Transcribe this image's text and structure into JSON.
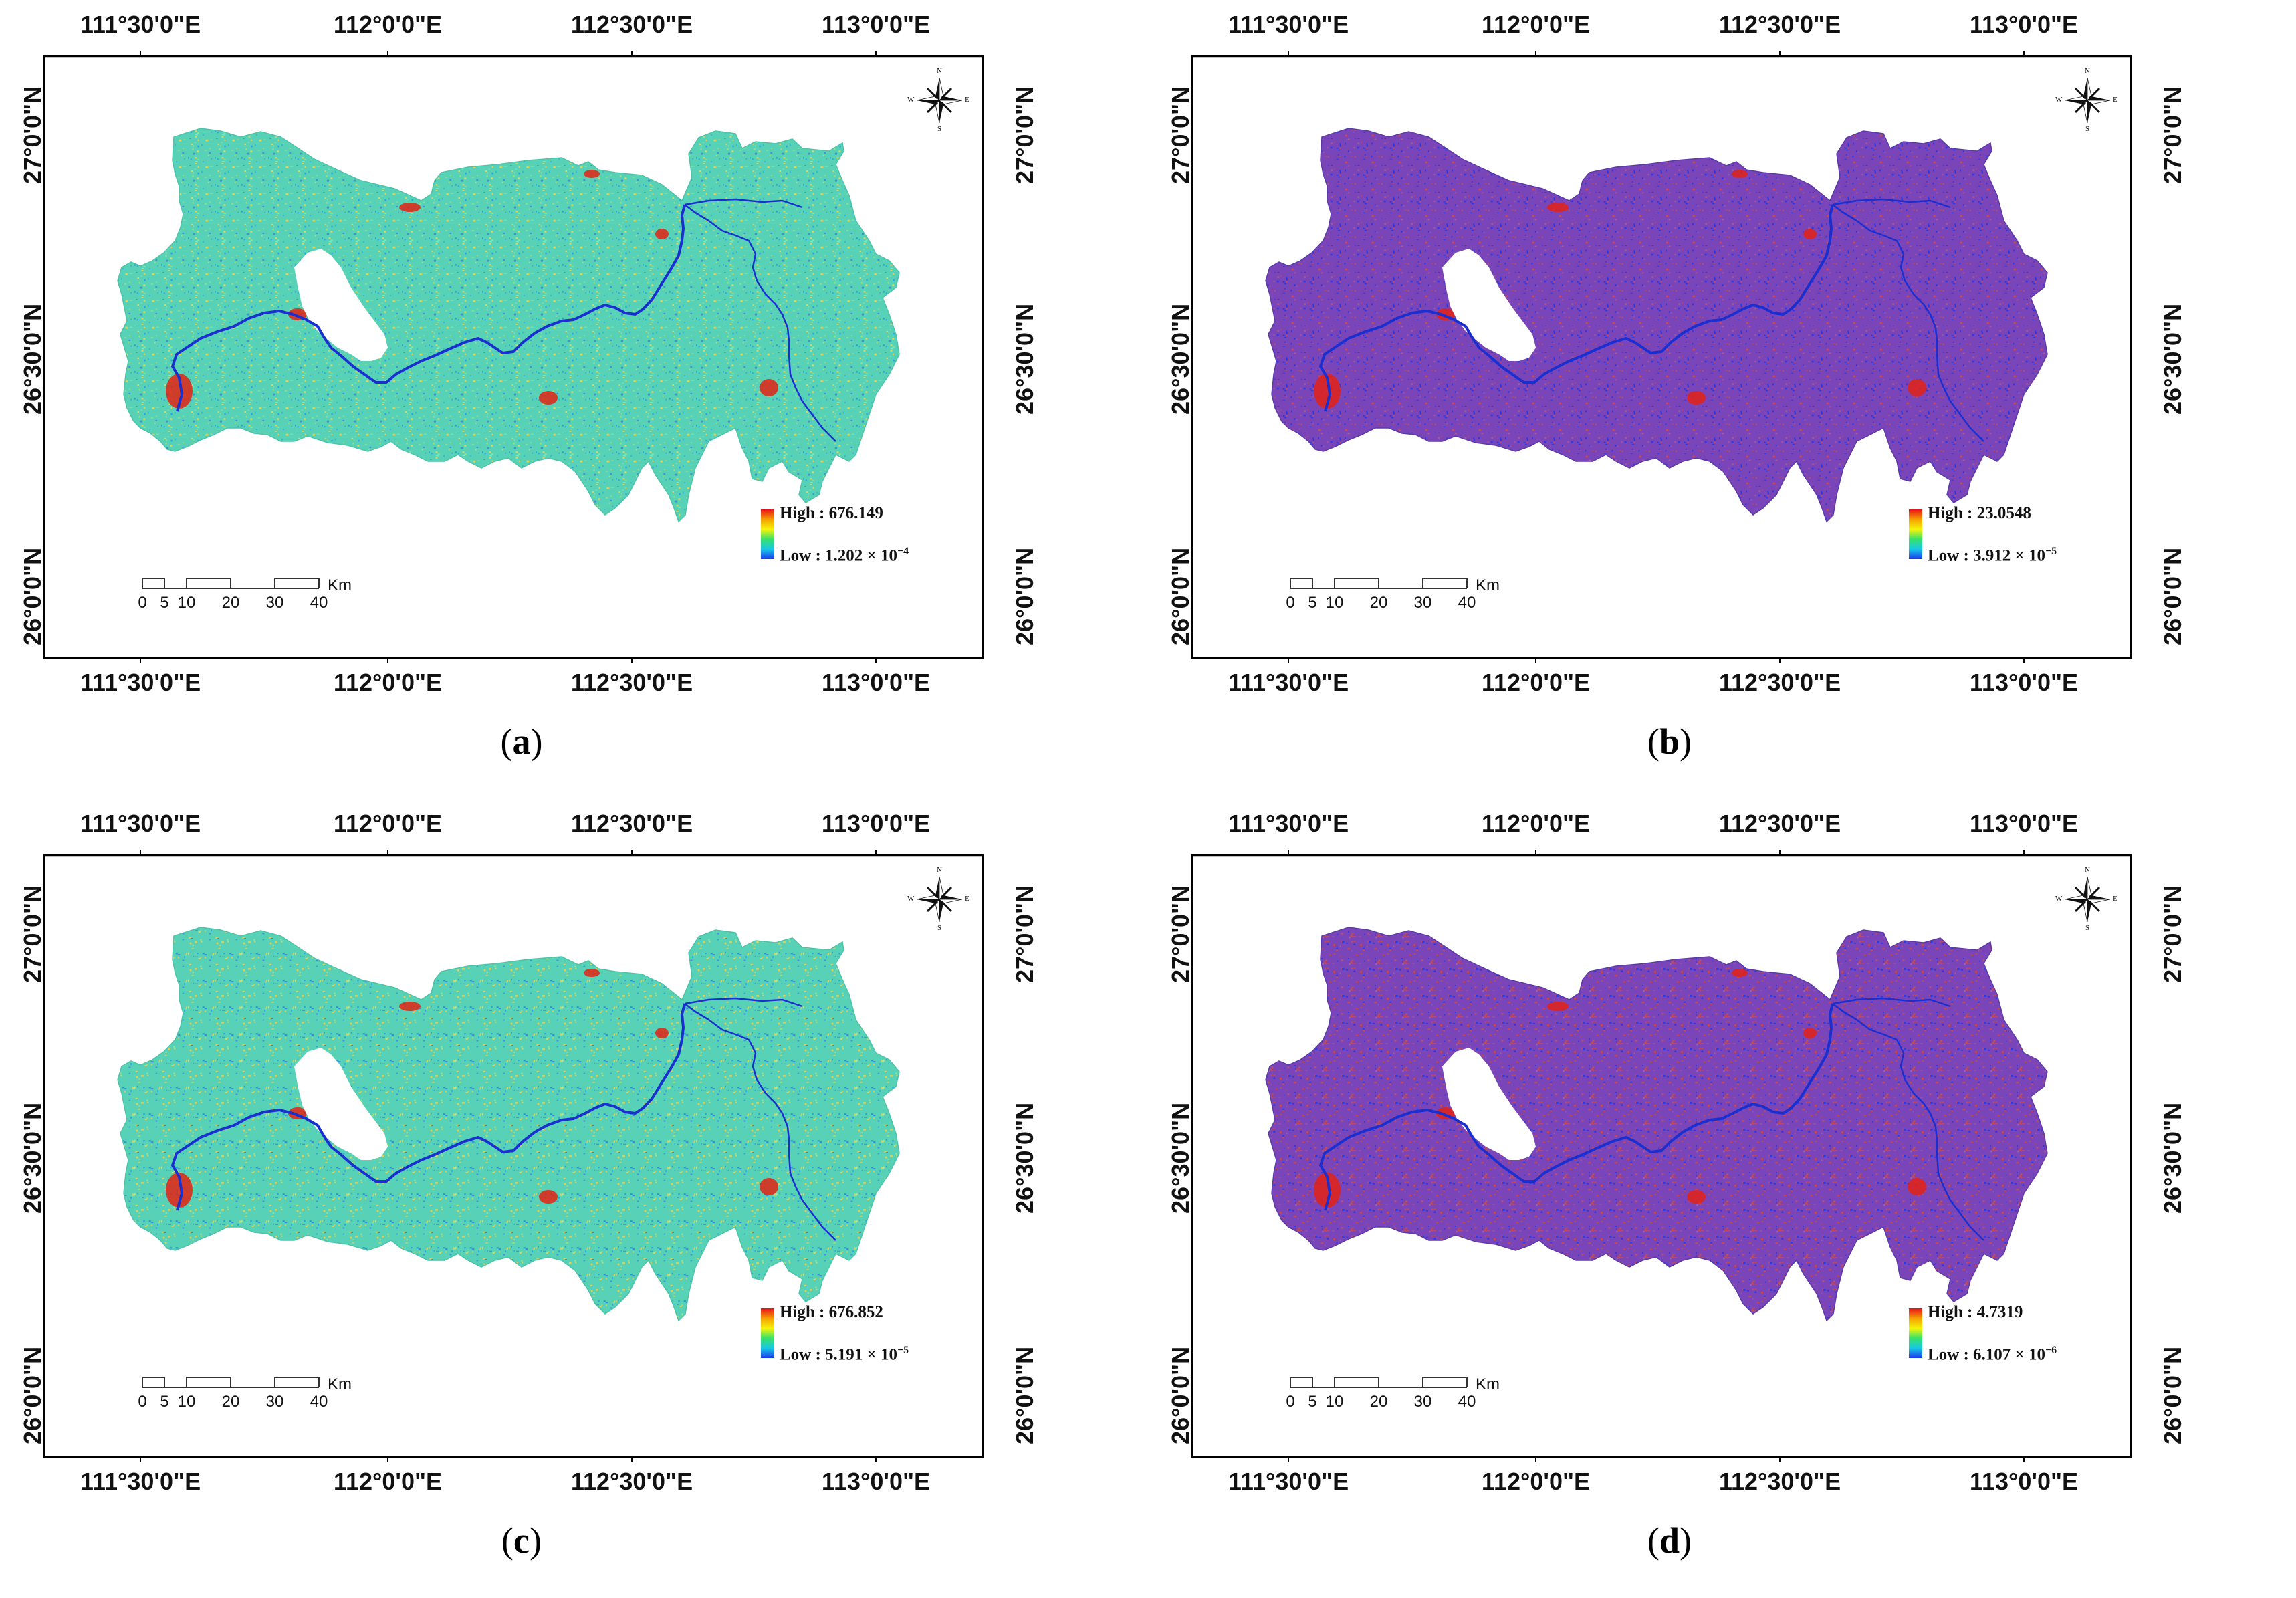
{
  "panels": [
    {
      "id": "a",
      "letter": "a",
      "legend_high": "High : 676.149",
      "legend_low_prefix": "Low : 1.202 × 10",
      "legend_low_exp": "−4",
      "palette": "rainbow"
    },
    {
      "id": "b",
      "letter": "b",
      "legend_high": "High : 23.0548",
      "legend_low_prefix": "Low : 3.912 × 10",
      "legend_low_exp": "−5",
      "palette": "purple"
    },
    {
      "id": "c",
      "letter": "c",
      "legend_high": "High : 676.852",
      "legend_low_prefix": "Low : 5.191 × 10",
      "legend_low_exp": "−5",
      "palette": "rainbow"
    },
    {
      "id": "d",
      "letter": "d",
      "legend_high": "High : 4.7319",
      "legend_low_prefix": "Low : 6.107 × 10",
      "legend_low_exp": "−6",
      "palette": "purple"
    }
  ],
  "lon_labels": [
    "111°30'0\"E",
    "112°0'0\"E",
    "112°30'0\"E",
    "113°0'0\"E"
  ],
  "lat_labels": [
    "27°0'0\"N",
    "26°30'0\"N",
    "26°0'0\"N"
  ],
  "scale_bar": {
    "ticks": [
      "0",
      "5",
      "10",
      "20",
      "30",
      "40"
    ],
    "unit": "Km"
  },
  "compass": {
    "n": "N",
    "s": "S",
    "e": "E",
    "w": "W"
  },
  "colors": {
    "legend_ramp": [
      "#e8101a",
      "#f5a300",
      "#f4f40a",
      "#34e26a",
      "#16c8e6",
      "#1a3cf0"
    ],
    "rainbow_fill": "#57d2b6",
    "rainbow_texture": "#e0d256",
    "purple_fill": "#7a45b8",
    "purple_texture": "#c24a5a",
    "river": "#1a2fd0",
    "hotspot": "#e32214"
  }
}
